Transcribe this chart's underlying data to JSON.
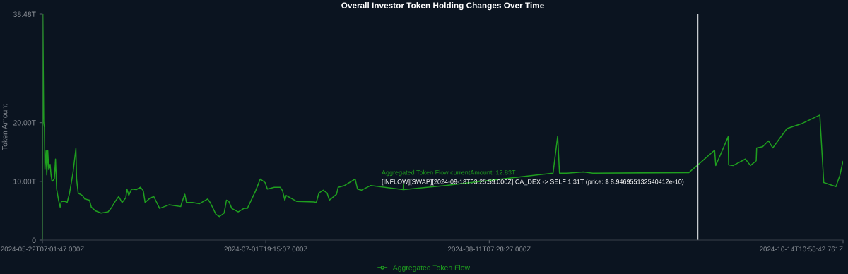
{
  "chart_data": {
    "type": "line",
    "title": "Overall Investor Token Holding Changes Over Time",
    "ylabel": "Token Amount",
    "series": [
      {
        "name": "Aggregated Token Flow",
        "color": "#1f9e1f",
        "x": [
          "2024-05-22T07:01:47",
          "2024-05-22T09:00",
          "2024-05-22T11:00",
          "2024-05-22T13:00",
          "2024-05-22T16:00",
          "2024-05-22T18:00",
          "2024-05-22T23:00",
          "2024-05-23T02:00",
          "2024-05-23T06:30",
          "2024-05-23T10:30",
          "2024-05-23T16:40",
          "2024-05-23T20:40",
          "2024-05-24T00:50",
          "2024-05-24T11:00",
          "2024-05-24T16:10",
          "2024-05-24T21:00",
          "2024-05-25T05:20",
          "2024-05-25T12:20",
          "2024-05-25T17:30",
          "2024-05-26T08:50",
          "2024-05-26T18:50",
          "2024-05-27T05:20",
          "2024-05-27T20:40",
          "2024-05-28T08:50",
          "2024-05-28T11:50",
          "2024-05-28T18:50",
          "2024-05-29T13:10",
          "2024-05-29T23:20",
          "2024-05-30T19:50",
          "2024-05-31T04:00",
          "2024-05-31T21:10",
          "2024-06-01T22:50",
          "2024-06-03T05:00",
          "2024-06-03T21:00",
          "2024-06-04T12:00",
          "2024-06-05T03:00",
          "2024-06-05T18:00",
          "2024-06-06T10:00",
          "2024-06-06T15:00",
          "2024-06-06T23:00",
          "2024-06-07T11:00",
          "2024-06-08T08:00",
          "2024-06-09T02:00",
          "2024-06-09T14:00",
          "2024-06-09T22:00",
          "2024-06-10T21:00",
          "2024-06-11T12:00",
          "2024-06-12T13:00",
          "2024-06-14T06:00",
          "2024-06-16T09:00",
          "2024-06-16T14:00",
          "2024-06-17T03:00",
          "2024-06-17T10:00",
          "2024-06-18T12:00",
          "2024-06-19T19:00",
          "2024-06-21T06:00",
          "2024-06-21T17:00",
          "2024-06-22T18:00",
          "2024-06-23T09:00",
          "2024-06-24T06:00",
          "2024-06-24T16:00",
          "2024-06-25T02:00",
          "2024-06-25T15:00",
          "2024-06-26T19:00",
          "2024-06-27T20:00",
          "2024-06-28T11:00",
          "2024-06-29T23:00",
          "2024-06-30T19:00",
          "2024-07-01T16:00",
          "2024-07-02T02:00",
          "2024-07-03T08:00",
          "2024-07-04T10:00",
          "2024-07-04T20:00",
          "2024-07-05T06:00",
          "2024-07-05T12:00",
          "2024-07-07T09:00",
          "2024-07-10T14:00",
          "2024-07-10T23:00",
          "2024-07-11T10:00",
          "2024-07-12T05:00",
          "2024-07-12T22:00",
          "2024-07-13T08:00",
          "2024-07-14T15:00",
          "2024-07-14T22:00",
          "2024-07-16T02:00",
          "2024-07-18T00:00",
          "2024-07-18T10:00",
          "2024-07-19T03:00",
          "2024-07-20T20:00",
          "2024-07-26T17:00",
          "2024-07-26T18:00",
          "2024-07-26T19:00",
          "2024-08-03T08:00",
          "2024-08-22T21:00",
          "2024-08-23T17:00",
          "2024-08-24T01:00",
          "2024-08-25T10:00",
          "2024-08-28T09:00",
          "2024-08-30T02:00",
          "2024-09-16T12:00",
          "2024-09-18T03:25",
          "2024-09-21T04:00",
          "2024-09-21T09:00",
          "2024-09-23T15:00",
          "2024-09-23T17:00",
          "2024-09-24T13:00",
          "2024-09-26T18:00",
          "2024-09-27T16:00",
          "2024-09-28T17:00",
          "2024-09-28T19:00",
          "2024-09-29T21:00",
          "2024-09-30T22:00",
          "2024-10-01T17:00",
          "2024-10-04T07:00",
          "2024-10-06T21:00",
          "2024-10-10T06:00",
          "2024-10-10T08:00",
          "2024-10-10T23:00",
          "2024-10-13T04:00",
          "2024-10-13T21:00",
          "2024-10-14T07:00",
          "2024-10-14T10:58"
        ],
        "values": [
          0,
          38.48,
          28.7,
          20,
          19.2,
          12,
          15.2,
          11.1,
          15.2,
          12,
          12.9,
          11.1,
          10,
          10.4,
          13.8,
          8.7,
          6.8,
          5.6,
          6.6,
          6.6,
          6.4,
          8,
          11.6,
          15.6,
          10.4,
          8,
          7.6,
          7,
          6.8,
          5.6,
          5,
          4.6,
          4.8,
          5.6,
          6.6,
          7.4,
          6.4,
          7.2,
          8.7,
          7.6,
          8.7,
          8.6,
          9,
          8.4,
          6.4,
          7.2,
          7.4,
          5.4,
          6,
          5.7,
          6.4,
          7.8,
          6.4,
          6.4,
          6.2,
          7,
          6.4,
          4.4,
          4,
          4.6,
          6.8,
          6.6,
          5.4,
          4.8,
          5.4,
          5.4,
          8.4,
          10.4,
          9.8,
          8.7,
          9,
          9,
          8.4,
          6.8,
          7.6,
          6.6,
          6.5,
          6.4,
          8,
          8.5,
          8,
          6.8,
          7.8,
          9,
          9.3,
          10.4,
          8.7,
          8.5,
          9.3,
          8.6,
          9.6,
          8.6,
          9.3,
          11.4,
          17.7,
          11.4,
          11.4,
          11.6,
          11.4,
          11.5,
          12.83,
          15.3,
          12.7,
          17.6,
          12.8,
          12.7,
          13.8,
          12.7,
          13.5,
          15.7,
          15.9,
          16.9,
          15.7,
          19,
          19.8,
          21.3,
          19.8,
          9.8,
          9.1,
          11,
          12.8,
          13.4
        ]
      }
    ],
    "xlim": [
      "2024-05-22T07:01:47",
      "2024-10-14T10:58:42"
    ],
    "xticks": [
      {
        "value": "2024-05-22T07:01:47",
        "label": "2024-05-22T07:01:47.000Z"
      },
      {
        "value": "2024-07-01T19:15:07",
        "label": "2024-07-01T19:15:07.000Z"
      },
      {
        "value": "2024-08-11T07:28:27",
        "label": "2024-08-11T07:28:27.000Z"
      },
      {
        "value": "2024-10-14T10:58:42",
        "label": "2024-10-14T10:58:42.761Z"
      }
    ],
    "ylim": [
      0,
      38.48
    ],
    "yticks": [
      0,
      {
        "value": 10,
        "label": "10.00T"
      },
      {
        "value": 20,
        "label": "20.00T"
      },
      {
        "value": 38.48,
        "label": "38.48T"
      }
    ],
    "ref_lines": [
      {
        "axis": "x",
        "value": "2024-09-18T03:25:59",
        "color": "#c8ccd0"
      }
    ],
    "annotations": [
      "Aggregated Token Flow currentAmount: 12.83T",
      "[INFLOW][SWAP][2024-09-18T03:25:59.000Z] CA_DEX -> SELF 1.31T (price: $ 8.946955132540412e-10)"
    ],
    "grid": false,
    "legend": "bottom",
    "marker": "none",
    "line_style": "solid"
  }
}
